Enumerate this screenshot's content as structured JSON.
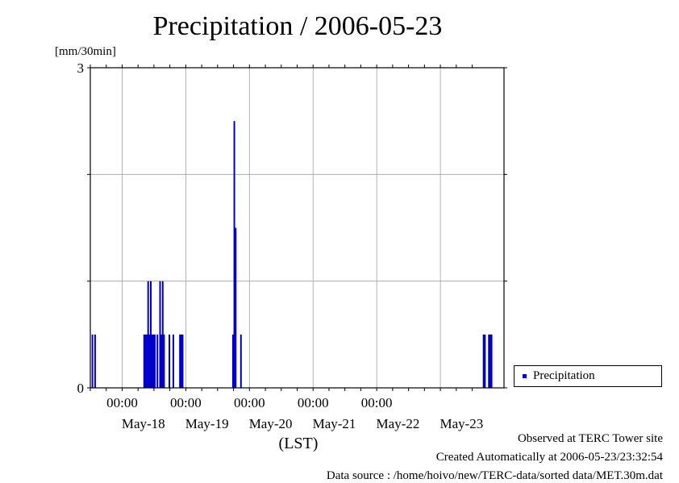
{
  "title": "Precipitation / 2006-05-23",
  "y_unit": "[mm/30min]",
  "legend_label": "Precipitation",
  "footer": {
    "observed": "Observed at TERC Tower site",
    "created": "Created Automatically at 2006-05-23/23:32:54",
    "source": "Data source : /home/hoivo/new/TERC-data/sorted  data/MET.30m.dat"
  },
  "chart_data": {
    "type": "bar",
    "title": "Precipitation / 2006-05-23",
    "ylabel": "[mm/30min]",
    "xlabel": "(LST)",
    "ylim": [
      0,
      3
    ],
    "yticks": [
      "0",
      "3"
    ],
    "xlim": [
      "2006-05-17T12:00",
      "2006-05-24T00:00"
    ],
    "xtick_time_labels": [
      "00:00",
      "00:00",
      "00:00",
      "00:00",
      "00:00"
    ],
    "xtick_date_labels": [
      "May-18",
      "May-19",
      "May-20",
      "May-21",
      "May-22",
      "May-23"
    ],
    "grid": true,
    "legend_position": "right",
    "color": "#0000c8",
    "series": [
      {
        "name": "Precipitation",
        "times": [
          "2006-05-17T12:30",
          "2006-05-17T13:30",
          "2006-05-18T08:00",
          "2006-05-18T08:30",
          "2006-05-18T09:00",
          "2006-05-18T09:30",
          "2006-05-18T10:00",
          "2006-05-18T10:30",
          "2006-05-18T11:00",
          "2006-05-18T11:30",
          "2006-05-18T12:00",
          "2006-05-18T13:00",
          "2006-05-18T14:00",
          "2006-05-18T14:30",
          "2006-05-18T15:00",
          "2006-05-18T15:30",
          "2006-05-18T17:30",
          "2006-05-18T19:00",
          "2006-05-18T21:30",
          "2006-05-18T22:00",
          "2006-05-18T22:30",
          "2006-05-19T17:30",
          "2006-05-19T18:00",
          "2006-05-19T18:30",
          "2006-05-19T20:30",
          "2006-05-23T16:00",
          "2006-05-23T16:30",
          "2006-05-23T18:00",
          "2006-05-23T18:30",
          "2006-05-23T19:00"
        ],
        "values": [
          0.5,
          0.5,
          0.5,
          0.5,
          0.5,
          1.0,
          0.5,
          1.0,
          0.5,
          0.5,
          0.5,
          0.5,
          1.0,
          0.5,
          1.0,
          0.5,
          0.5,
          0.5,
          0.5,
          0.5,
          0.5,
          0.5,
          2.5,
          1.5,
          0.5,
          0.5,
          0.5,
          0.5,
          0.5,
          0.5
        ]
      }
    ]
  }
}
